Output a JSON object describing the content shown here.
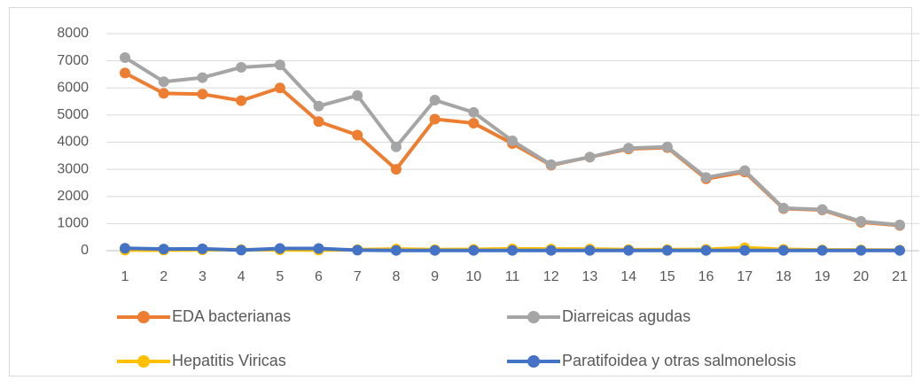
{
  "chart_data": {
    "type": "line",
    "categories": [
      "1",
      "2",
      "3",
      "4",
      "5",
      "6",
      "7",
      "8",
      "9",
      "10",
      "11",
      "12",
      "13",
      "14",
      "15",
      "16",
      "17",
      "18",
      "19",
      "20",
      "21"
    ],
    "ylim": [
      0,
      8000
    ],
    "yticks": [
      0,
      1000,
      2000,
      3000,
      4000,
      5000,
      6000,
      7000,
      8000
    ],
    "grid": true,
    "legend": "bottom",
    "series": [
      {
        "name": "EDA bacterianas",
        "color": "#ED7D31",
        "values": [
          6550,
          5800,
          5770,
          5530,
          6000,
          4760,
          4260,
          3000,
          4850,
          4700,
          3950,
          3150,
          3450,
          3750,
          3800,
          2650,
          2900,
          1550,
          1500,
          1050,
          930
        ]
      },
      {
        "name": "Diarreicas agudas",
        "color": "#A5A5A5",
        "values": [
          7120,
          6230,
          6380,
          6760,
          6850,
          5330,
          5720,
          3830,
          5550,
          5100,
          4050,
          3170,
          3450,
          3780,
          3830,
          2700,
          2950,
          1570,
          1520,
          1080,
          950
        ]
      },
      {
        "name": "Hepatitis Viricas",
        "color": "#FFC000",
        "values": [
          20,
          20,
          30,
          40,
          30,
          20,
          40,
          60,
          40,
          50,
          70,
          60,
          60,
          40,
          40,
          50,
          110,
          50,
          30,
          30,
          20
        ]
      },
      {
        "name": "Paratifoidea y otras salmonelosis",
        "color": "#4472C4",
        "values": [
          90,
          60,
          70,
          20,
          80,
          80,
          20,
          10,
          10,
          10,
          10,
          10,
          10,
          10,
          10,
          10,
          10,
          10,
          10,
          10,
          10
        ]
      }
    ]
  }
}
